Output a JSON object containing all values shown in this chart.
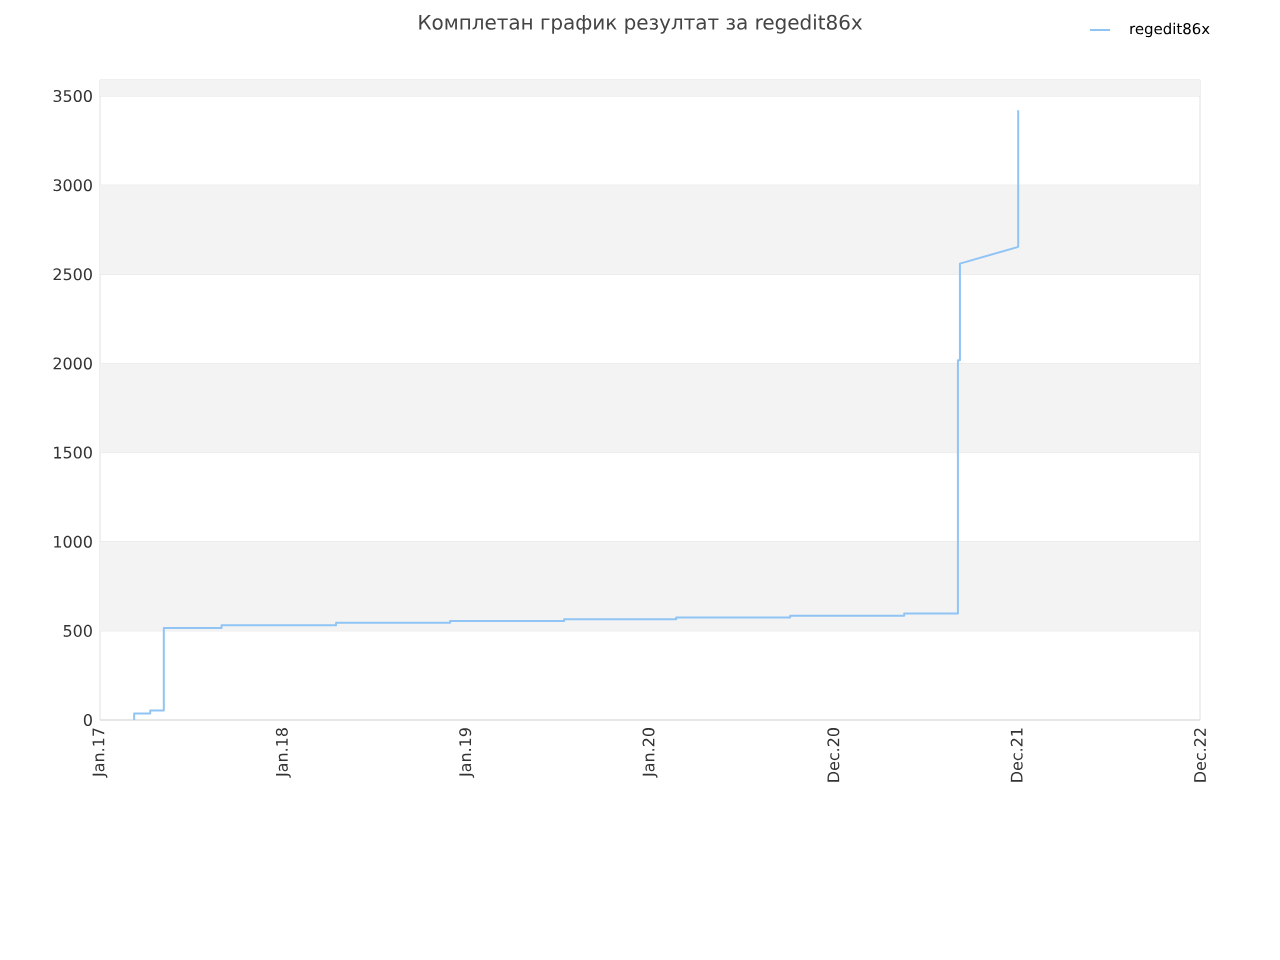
{
  "chart_data": {
    "type": "line",
    "title": "Комплетан график резултат за regedit86x",
    "x": [
      "2017-03-10",
      "2017-03-10",
      "2017-04-11",
      "2017-04-11",
      "2017-05-08",
      "2017-05-08",
      "2017-08-31",
      "2017-08-31",
      "2018-04-16",
      "2018-04-16",
      "2018-11-29",
      "2018-11-29",
      "2019-07-14",
      "2019-07-14",
      "2020-02-22",
      "2020-02-22",
      "2020-10-06",
      "2020-10-06",
      "2021-05-21",
      "2021-05-21",
      "2021-09-05",
      "2021-09-05",
      "2021-09-09",
      "2021-09-09",
      "2022-01-03",
      "2022-01-03"
    ],
    "series": [
      {
        "name": "regedit86x",
        "color": "#90c4f5",
        "values": [
          0,
          37,
          37,
          53,
          53,
          516,
          516,
          531,
          531,
          546,
          546,
          555,
          555,
          565,
          565,
          575,
          575,
          585,
          585,
          598,
          598,
          2018,
          2018,
          2560,
          2654,
          3420
        ]
      }
    ],
    "xlim": [
      "2017-01-01",
      "2022-12-31"
    ],
    "xticks": [
      {
        "value": "2017-01-01",
        "label": "Jan.17"
      },
      {
        "value": "2018-01-01",
        "label": "Jan.18"
      },
      {
        "value": "2019-01-01",
        "label": "Jan.19"
      },
      {
        "value": "2020-01-01",
        "label": "Jan.20"
      },
      {
        "value": "2020-12-31",
        "label": "Dec.20"
      },
      {
        "value": "2021-12-31",
        "label": "Dec.21"
      },
      {
        "value": "2022-12-31",
        "label": "Dec.22"
      }
    ],
    "ylim": [
      0,
      3590
    ],
    "yticks": [
      0,
      500,
      1000,
      1500,
      2000,
      2500,
      3000,
      3500
    ],
    "grid": "y",
    "legend": "top right"
  }
}
